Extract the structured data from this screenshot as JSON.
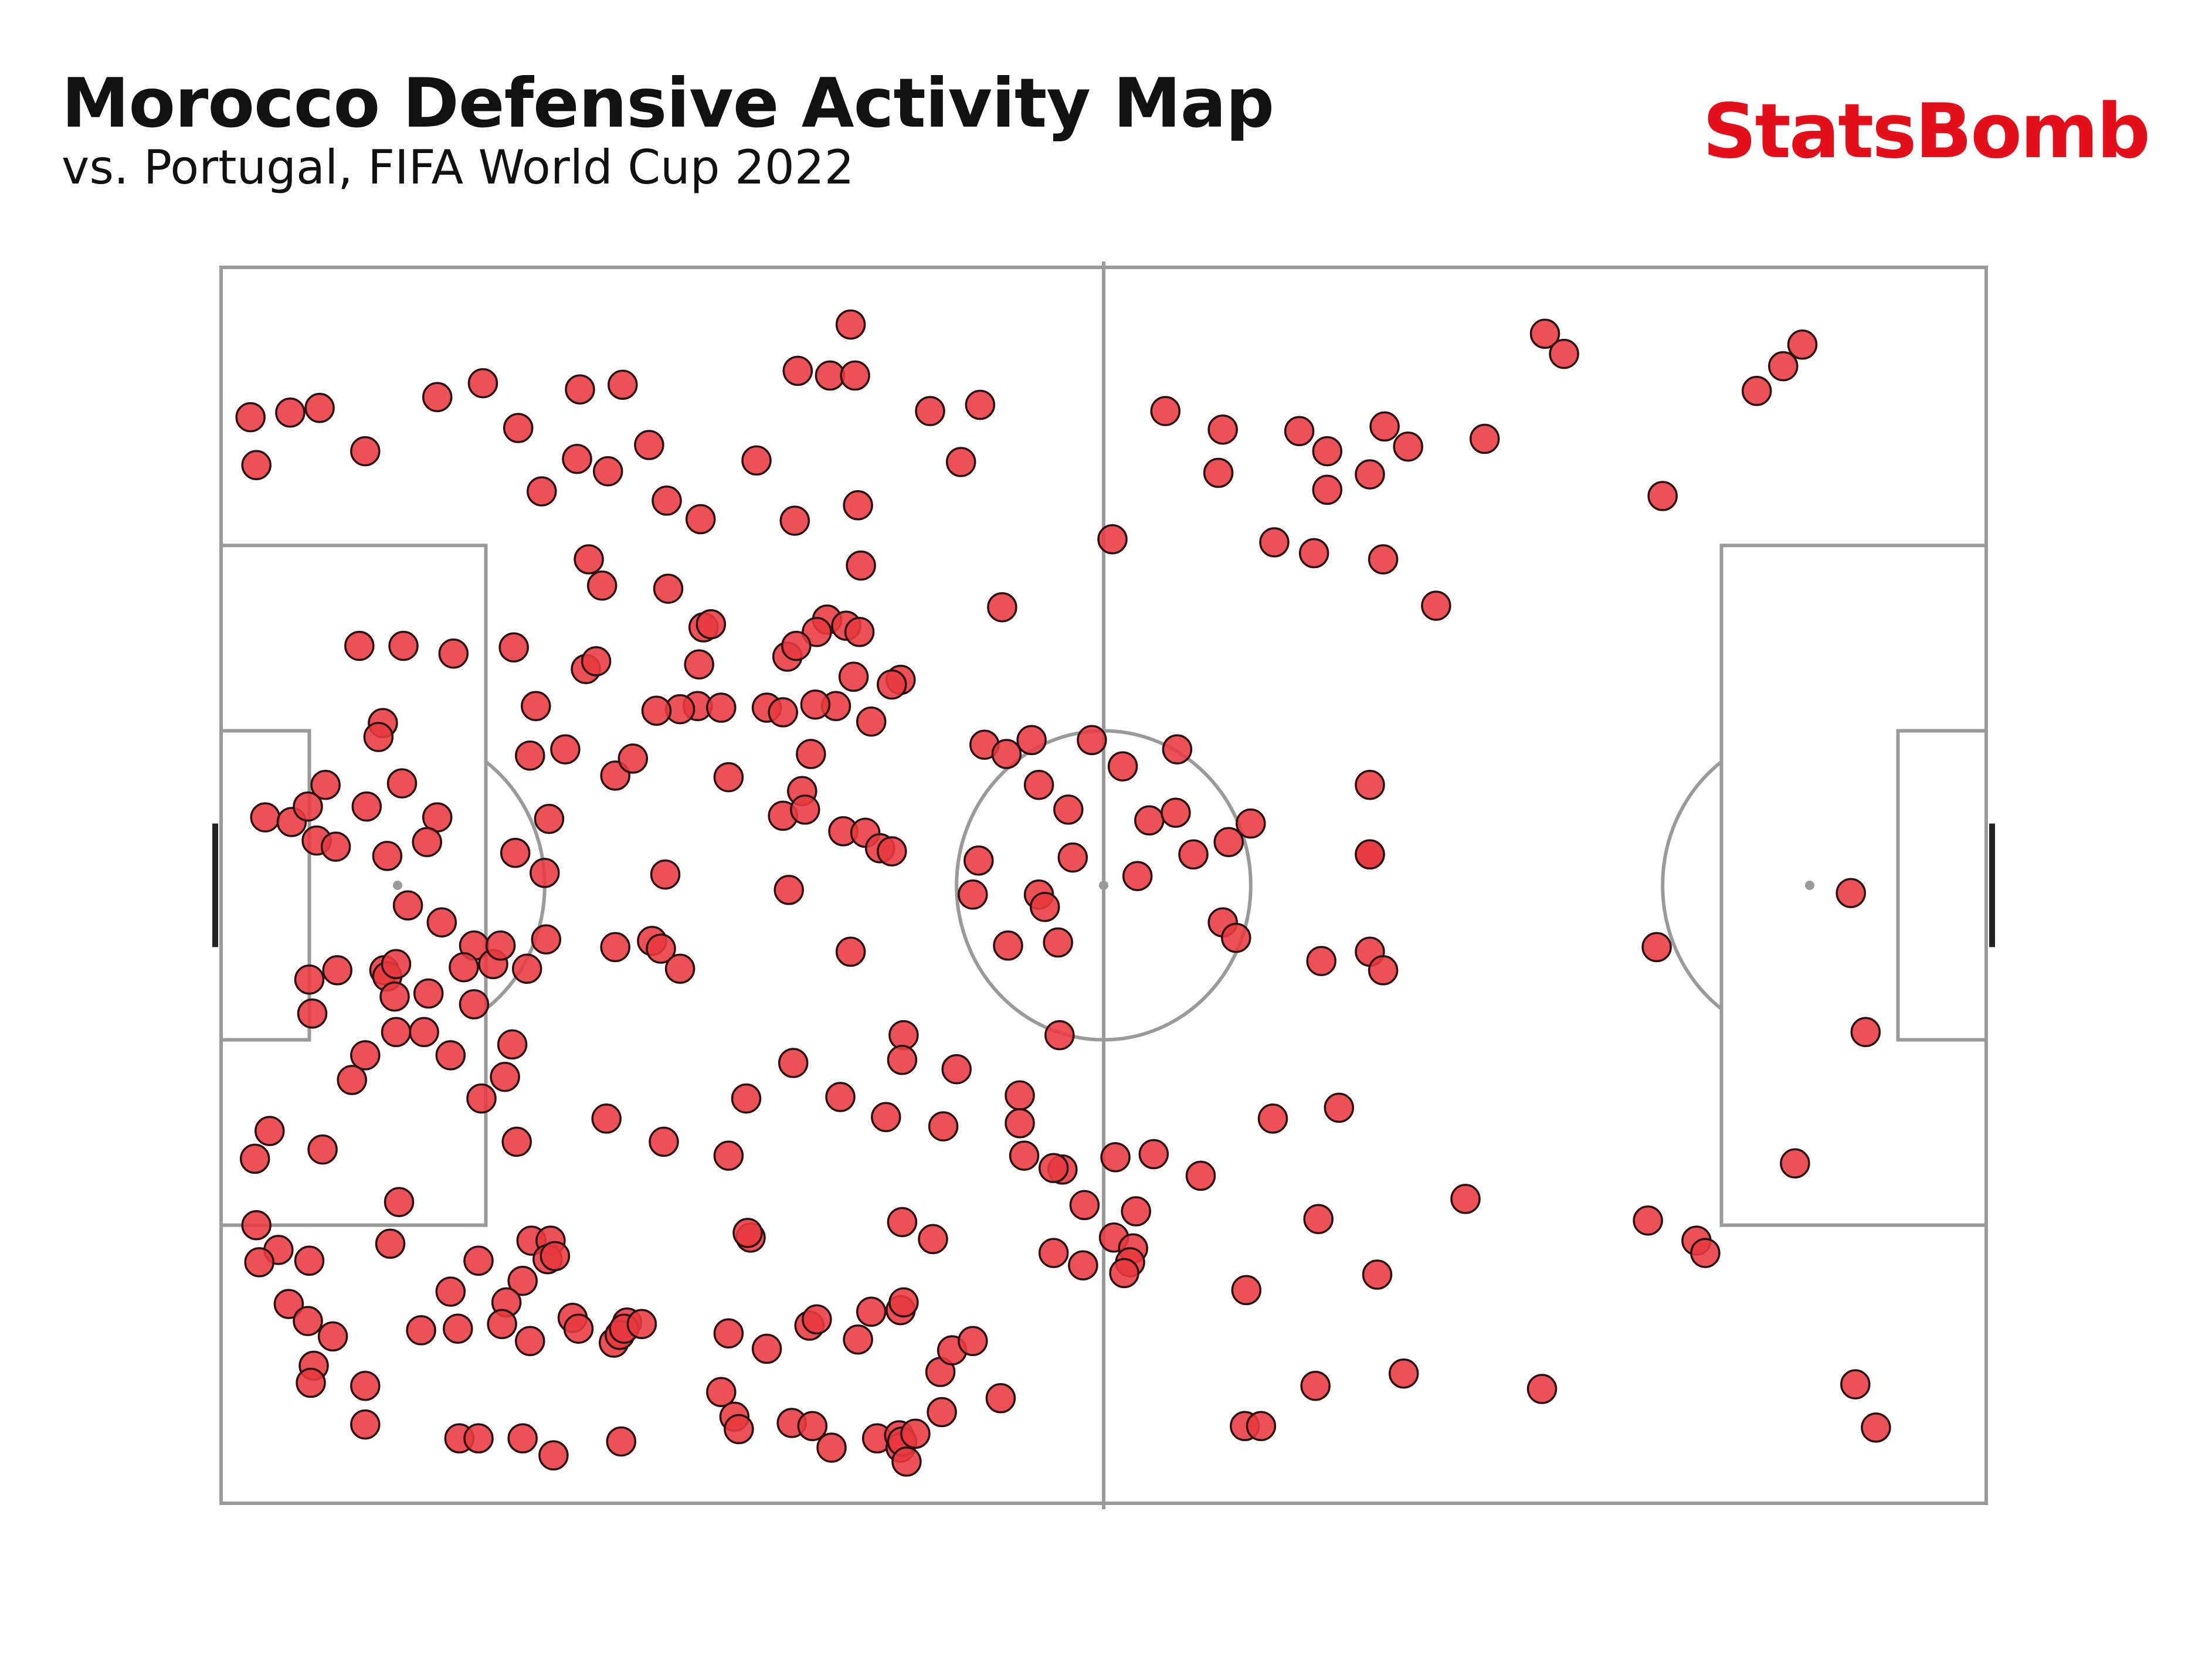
{
  "header": {
    "title": "Morocco Defensive Activity Map",
    "subtitle": "vs. Portugal, FIFA World Cup 2022"
  },
  "brand": {
    "name": "StatsBomb",
    "color": "#E3101B"
  },
  "colors": {
    "marker_fill": "#E8393F",
    "marker_stroke": "#2B1114",
    "pitch_lines": "#9A9A9A",
    "goal": "#222222"
  },
  "chart_data": {
    "type": "scatter",
    "pitch": "StatsBomb 120x80",
    "xlim": [
      0,
      120
    ],
    "ylim": [
      0,
      80
    ],
    "title": "Morocco Defensive Activity Map",
    "subtitle": "vs. Portugal, FIFA World Cup 2022",
    "points": [
      [
        42.8,
        3.7
      ],
      [
        39.2,
        6.7
      ],
      [
        41.4,
        7.0
      ],
      [
        43.1,
        7.0
      ],
      [
        2.0,
        9.7
      ],
      [
        4.7,
        9.4
      ],
      [
        6.7,
        9.1
      ],
      [
        14.7,
        8.4
      ],
      [
        17.8,
        7.5
      ],
      [
        24.4,
        7.9
      ],
      [
        27.3,
        7.6
      ],
      [
        48.2,
        9.3
      ],
      [
        51.6,
        8.9
      ],
      [
        64.2,
        9.3
      ],
      [
        68.1,
        10.5
      ],
      [
        73.3,
        10.6
      ],
      [
        75.2,
        11.9
      ],
      [
        79.1,
        10.3
      ],
      [
        80.7,
        11.6
      ],
      [
        85.9,
        11.1
      ],
      [
        90.0,
        4.3
      ],
      [
        91.3,
        5.6
      ],
      [
        107.5,
        5.0
      ],
      [
        106.2,
        6.4
      ],
      [
        104.4,
        8.0
      ],
      [
        2.4,
        12.8
      ],
      [
        9.8,
        11.9
      ],
      [
        20.2,
        10.4
      ],
      [
        24.2,
        12.4
      ],
      [
        26.3,
        13.2
      ],
      [
        29.1,
        11.5
      ],
      [
        36.4,
        12.5
      ],
      [
        30.3,
        15.1
      ],
      [
        32.6,
        16.3
      ],
      [
        39.0,
        16.4
      ],
      [
        43.3,
        15.4
      ],
      [
        50.3,
        12.6
      ],
      [
        21.8,
        14.5
      ],
      [
        67.8,
        13.3
      ],
      [
        78.1,
        13.4
      ],
      [
        75.2,
        14.4
      ],
      [
        71.6,
        17.8
      ],
      [
        74.3,
        18.5
      ],
      [
        79.0,
        18.9
      ],
      [
        82.6,
        21.9
      ],
      [
        98.0,
        14.8
      ],
      [
        60.6,
        17.6
      ],
      [
        25.0,
        18.9
      ],
      [
        25.9,
        20.6
      ],
      [
        30.4,
        20.8
      ],
      [
        43.5,
        19.3
      ],
      [
        41.2,
        22.8
      ],
      [
        53.1,
        22.0
      ],
      [
        9.4,
        24.5
      ],
      [
        12.4,
        24.5
      ],
      [
        15.8,
        25.0
      ],
      [
        19.9,
        24.6
      ],
      [
        24.8,
        26.0
      ],
      [
        25.5,
        25.5
      ],
      [
        32.8,
        23.3
      ],
      [
        32.5,
        25.7
      ],
      [
        33.3,
        23.1
      ],
      [
        40.5,
        23.6
      ],
      [
        42.5,
        23.2
      ],
      [
        43.4,
        23.6
      ],
      [
        38.5,
        25.2
      ],
      [
        39.1,
        24.5
      ],
      [
        43.0,
        26.5
      ],
      [
        41.8,
        28.4
      ],
      [
        46.2,
        26.7
      ],
      [
        32.4,
        28.4
      ],
      [
        31.2,
        28.6
      ],
      [
        29.6,
        28.7
      ],
      [
        34.0,
        28.5
      ],
      [
        37.1,
        28.5
      ],
      [
        38.2,
        28.8
      ],
      [
        40.4,
        28.3
      ],
      [
        40.1,
        31.5
      ],
      [
        44.2,
        29.4
      ],
      [
        45.6,
        27.0
      ],
      [
        21.4,
        28.4
      ],
      [
        11.0,
        29.5
      ],
      [
        10.7,
        30.4
      ],
      [
        21.0,
        31.6
      ],
      [
        23.4,
        31.2
      ],
      [
        26.8,
        32.9
      ],
      [
        28.0,
        31.8
      ],
      [
        34.5,
        33.0
      ],
      [
        51.9,
        30.9
      ],
      [
        55.1,
        30.6
      ],
      [
        53.4,
        31.5
      ],
      [
        59.2,
        30.6
      ],
      [
        61.3,
        32.3
      ],
      [
        65.0,
        31.2
      ],
      [
        7.1,
        33.5
      ],
      [
        3.0,
        35.6
      ],
      [
        4.8,
        35.9
      ],
      [
        5.9,
        34.9
      ],
      [
        9.9,
        34.9
      ],
      [
        12.3,
        33.4
      ],
      [
        14.7,
        35.6
      ],
      [
        22.3,
        35.7
      ],
      [
        39.5,
        33.9
      ],
      [
        38.2,
        35.5
      ],
      [
        39.7,
        35.1
      ],
      [
        42.3,
        36.5
      ],
      [
        43.8,
        36.6
      ],
      [
        55.6,
        33.5
      ],
      [
        57.6,
        35.1
      ],
      [
        63.1,
        35.8
      ],
      [
        64.9,
        35.3
      ],
      [
        68.5,
        37.2
      ],
      [
        78.1,
        33.5
      ],
      [
        70.0,
        36.0
      ],
      [
        6.5,
        37.1
      ],
      [
        7.8,
        37.5
      ],
      [
        11.3,
        38.1
      ],
      [
        14.0,
        37.2
      ],
      [
        20.0,
        37.9
      ],
      [
        22.0,
        39.2
      ],
      [
        30.2,
        39.3
      ],
      [
        38.6,
        40.3
      ],
      [
        44.8,
        37.6
      ],
      [
        45.6,
        37.8
      ],
      [
        51.5,
        38.4
      ],
      [
        51.1,
        40.6
      ],
      [
        55.6,
        40.6
      ],
      [
        56.0,
        41.4
      ],
      [
        57.9,
        38.2
      ],
      [
        62.3,
        39.4
      ],
      [
        66.1,
        38.0
      ],
      [
        68.1,
        42.4
      ],
      [
        78.1,
        38.0
      ],
      [
        78.1,
        38.0
      ],
      [
        110.8,
        40.5
      ],
      [
        12.7,
        41.3
      ],
      [
        15.0,
        42.4
      ],
      [
        17.2,
        43.9
      ],
      [
        18.5,
        45.1
      ],
      [
        6.0,
        46.1
      ],
      [
        6.2,
        48.3
      ],
      [
        7.9,
        45.5
      ],
      [
        11.1,
        45.5
      ],
      [
        11.3,
        45.9
      ],
      [
        11.9,
        45.1
      ],
      [
        11.8,
        47.2
      ],
      [
        14.1,
        47.0
      ],
      [
        16.5,
        45.3
      ],
      [
        19.0,
        43.9
      ],
      [
        22.1,
        43.5
      ],
      [
        20.8,
        45.4
      ],
      [
        26.8,
        44.0
      ],
      [
        29.3,
        43.6
      ],
      [
        29.9,
        44.1
      ],
      [
        31.2,
        45.4
      ],
      [
        42.8,
        44.3
      ],
      [
        53.5,
        43.9
      ],
      [
        56.9,
        43.7
      ],
      [
        69.0,
        43.4
      ],
      [
        74.8,
        44.9
      ],
      [
        78.1,
        44.3
      ],
      [
        79.0,
        45.5
      ],
      [
        111.8,
        49.5
      ],
      [
        17.2,
        47.7
      ],
      [
        13.8,
        49.5
      ],
      [
        11.9,
        49.5
      ],
      [
        9.8,
        51.0
      ],
      [
        15.6,
        51.0
      ],
      [
        8.9,
        52.6
      ],
      [
        19.3,
        52.4
      ],
      [
        19.8,
        50.3
      ],
      [
        38.9,
        51.5
      ],
      [
        46.4,
        49.7
      ],
      [
        46.3,
        51.3
      ],
      [
        57.0,
        49.7
      ],
      [
        50.0,
        51.9
      ],
      [
        54.3,
        53.6
      ],
      [
        71.5,
        55.1
      ],
      [
        76.0,
        54.4
      ],
      [
        97.6,
        44.0
      ],
      [
        107.0,
        58.0
      ],
      [
        2.3,
        57.7
      ],
      [
        3.3,
        55.9
      ],
      [
        6.9,
        57.1
      ],
      [
        12.1,
        60.5
      ],
      [
        17.7,
        53.8
      ],
      [
        20.1,
        56.6
      ],
      [
        26.2,
        55.1
      ],
      [
        30.1,
        56.6
      ],
      [
        34.5,
        57.5
      ],
      [
        35.7,
        53.8
      ],
      [
        42.1,
        53.7
      ],
      [
        49.1,
        55.6
      ],
      [
        54.3,
        55.4
      ],
      [
        54.6,
        57.5
      ],
      [
        57.2,
        58.4
      ],
      [
        45.2,
        55.0
      ],
      [
        60.8,
        57.6
      ],
      [
        63.4,
        57.4
      ],
      [
        66.6,
        58.8
      ],
      [
        56.6,
        58.3
      ],
      [
        62.2,
        61.1
      ],
      [
        58.7,
        60.7
      ],
      [
        2.4,
        62.0
      ],
      [
        3.9,
        63.6
      ],
      [
        2.6,
        64.4
      ],
      [
        6.0,
        64.3
      ],
      [
        11.5,
        63.2
      ],
      [
        15.6,
        66.3
      ],
      [
        17.5,
        64.3
      ],
      [
        20.5,
        65.6
      ],
      [
        21.1,
        63.0
      ],
      [
        22.4,
        63.0
      ],
      [
        22.2,
        64.2
      ],
      [
        22.7,
        64.0
      ],
      [
        36.0,
        62.8
      ],
      [
        35.8,
        62.5
      ],
      [
        46.3,
        61.8
      ],
      [
        48.4,
        62.9
      ],
      [
        60.7,
        62.8
      ],
      [
        62.0,
        63.5
      ],
      [
        56.6,
        63.8
      ],
      [
        58.6,
        64.6
      ],
      [
        61.8,
        64.4
      ],
      [
        69.7,
        66.2
      ],
      [
        74.6,
        61.6
      ],
      [
        61.4,
        65.1
      ],
      [
        78.6,
        65.2
      ],
      [
        84.6,
        60.3
      ],
      [
        97.0,
        61.7
      ],
      [
        100.3,
        63.0
      ],
      [
        100.9,
        63.8
      ],
      [
        4.6,
        67.1
      ],
      [
        5.9,
        68.2
      ],
      [
        7.6,
        69.2
      ],
      [
        13.6,
        68.8
      ],
      [
        16.1,
        68.7
      ],
      [
        19.4,
        67.0
      ],
      [
        19.1,
        68.4
      ],
      [
        21.0,
        69.5
      ],
      [
        23.9,
        68.0
      ],
      [
        24.3,
        68.7
      ],
      [
        26.7,
        69.6
      ],
      [
        27.6,
        68.3
      ],
      [
        27.1,
        69.1
      ],
      [
        27.4,
        68.7
      ],
      [
        28.6,
        68.4
      ],
      [
        34.5,
        69.0
      ],
      [
        37.1,
        70.0
      ],
      [
        40.0,
        68.5
      ],
      [
        40.5,
        68.1
      ],
      [
        43.3,
        69.4
      ],
      [
        44.2,
        67.6
      ],
      [
        46.2,
        67.5
      ],
      [
        46.4,
        67.0
      ],
      [
        48.9,
        71.5
      ],
      [
        49.7,
        70.1
      ],
      [
        51.1,
        69.5
      ],
      [
        6.3,
        71.1
      ],
      [
        6.1,
        72.2
      ],
      [
        9.8,
        72.4
      ],
      [
        9.8,
        74.9
      ],
      [
        16.2,
        75.8
      ],
      [
        17.5,
        75.8
      ],
      [
        20.5,
        75.8
      ],
      [
        22.6,
        76.9
      ],
      [
        27.2,
        76.0
      ],
      [
        34.0,
        72.8
      ],
      [
        34.9,
        74.4
      ],
      [
        35.2,
        75.2
      ],
      [
        38.8,
        74.8
      ],
      [
        40.2,
        75.0
      ],
      [
        41.5,
        76.4
      ],
      [
        44.6,
        75.8
      ],
      [
        46.1,
        75.6
      ],
      [
        46.2,
        76.4
      ],
      [
        46.3,
        76.0
      ],
      [
        46.6,
        77.3
      ],
      [
        47.2,
        75.5
      ],
      [
        49.0,
        74.1
      ],
      [
        53.0,
        73.2
      ],
      [
        69.6,
        75.0
      ],
      [
        70.7,
        75.0
      ],
      [
        74.4,
        72.4
      ],
      [
        80.4,
        71.6
      ],
      [
        89.8,
        72.6
      ],
      [
        111.1,
        72.3
      ],
      [
        112.5,
        75.1
      ]
    ]
  }
}
